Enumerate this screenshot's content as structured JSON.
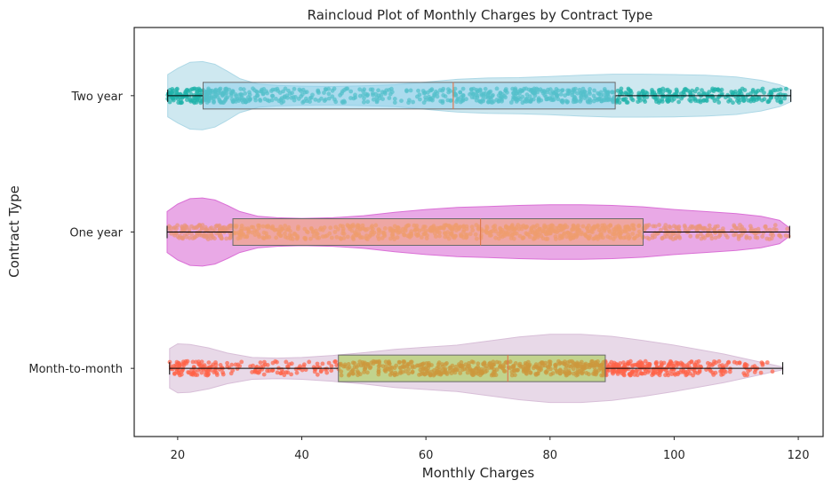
{
  "chart_data": {
    "type": "raincloud",
    "title": "Raincloud Plot of Monthly Charges by Contract Type",
    "xlabel": "Monthly Charges",
    "ylabel": "Contract Type",
    "xlim": [
      13,
      124
    ],
    "x_ticks": [
      20,
      40,
      60,
      80,
      100,
      120
    ],
    "grid": false,
    "orientation": "horizontal",
    "categories": [
      "Two year",
      "One year",
      "Month-to-month"
    ],
    "series": [
      {
        "name": "Two year",
        "violin_color": "#add8e6",
        "point_color": "#20b2aa",
        "box_color": "#87ceeb",
        "box": {
          "min": 18.4,
          "q1": 24.1,
          "median": 64.4,
          "q3": 90.5,
          "max": 118.8
        },
        "density": [
          [
            18.4,
            0.62
          ],
          [
            20,
            0.8
          ],
          [
            22,
            0.98
          ],
          [
            24,
            1.0
          ],
          [
            26,
            0.92
          ],
          [
            28,
            0.72
          ],
          [
            30,
            0.5
          ],
          [
            33,
            0.34
          ],
          [
            36,
            0.3
          ],
          [
            40,
            0.28
          ],
          [
            45,
            0.27
          ],
          [
            50,
            0.29
          ],
          [
            55,
            0.32
          ],
          [
            60,
            0.4
          ],
          [
            65,
            0.48
          ],
          [
            70,
            0.52
          ],
          [
            75,
            0.53
          ],
          [
            80,
            0.56
          ],
          [
            85,
            0.6
          ],
          [
            90,
            0.63
          ],
          [
            95,
            0.63
          ],
          [
            100,
            0.62
          ],
          [
            105,
            0.6
          ],
          [
            110,
            0.55
          ],
          [
            114,
            0.45
          ],
          [
            117,
            0.32
          ],
          [
            118.8,
            0.18
          ]
        ]
      },
      {
        "name": "One year",
        "violin_color": "#da70d6",
        "point_color": "#e9967a",
        "box_color": "#f4a460",
        "box": {
          "min": 18.3,
          "q1": 28.9,
          "median": 68.8,
          "q3": 95.0,
          "max": 118.6
        },
        "density": [
          [
            18.3,
            0.6
          ],
          [
            20,
            0.82
          ],
          [
            22,
            0.98
          ],
          [
            24,
            1.0
          ],
          [
            26,
            0.94
          ],
          [
            28,
            0.78
          ],
          [
            30,
            0.6
          ],
          [
            33,
            0.46
          ],
          [
            36,
            0.42
          ],
          [
            40,
            0.4
          ],
          [
            45,
            0.42
          ],
          [
            50,
            0.48
          ],
          [
            55,
            0.58
          ],
          [
            60,
            0.66
          ],
          [
            65,
            0.72
          ],
          [
            70,
            0.75
          ],
          [
            75,
            0.78
          ],
          [
            80,
            0.8
          ],
          [
            85,
            0.8
          ],
          [
            90,
            0.78
          ],
          [
            95,
            0.74
          ],
          [
            100,
            0.66
          ],
          [
            105,
            0.6
          ],
          [
            110,
            0.54
          ],
          [
            114,
            0.46
          ],
          [
            117,
            0.34
          ],
          [
            118.6,
            0.12
          ]
        ]
      },
      {
        "name": "Month-to-month",
        "violin_color": "#d8bfd8",
        "point_color": "#ff6347",
        "box_color": "#9acd32",
        "box": {
          "min": 18.7,
          "q1": 45.9,
          "median": 73.2,
          "q3": 88.9,
          "max": 117.5
        },
        "density": [
          [
            18.7,
            0.58
          ],
          [
            20,
            0.72
          ],
          [
            22,
            0.7
          ],
          [
            25,
            0.6
          ],
          [
            28,
            0.45
          ],
          [
            32,
            0.32
          ],
          [
            36,
            0.3
          ],
          [
            40,
            0.32
          ],
          [
            45,
            0.38
          ],
          [
            50,
            0.46
          ],
          [
            55,
            0.56
          ],
          [
            60,
            0.62
          ],
          [
            65,
            0.68
          ],
          [
            70,
            0.8
          ],
          [
            75,
            0.92
          ],
          [
            80,
            1.0
          ],
          [
            85,
            1.0
          ],
          [
            90,
            0.94
          ],
          [
            95,
            0.82
          ],
          [
            100,
            0.68
          ],
          [
            104,
            0.55
          ],
          [
            108,
            0.42
          ],
          [
            111,
            0.3
          ],
          [
            114,
            0.18
          ],
          [
            117.5,
            0.04
          ]
        ]
      }
    ]
  }
}
